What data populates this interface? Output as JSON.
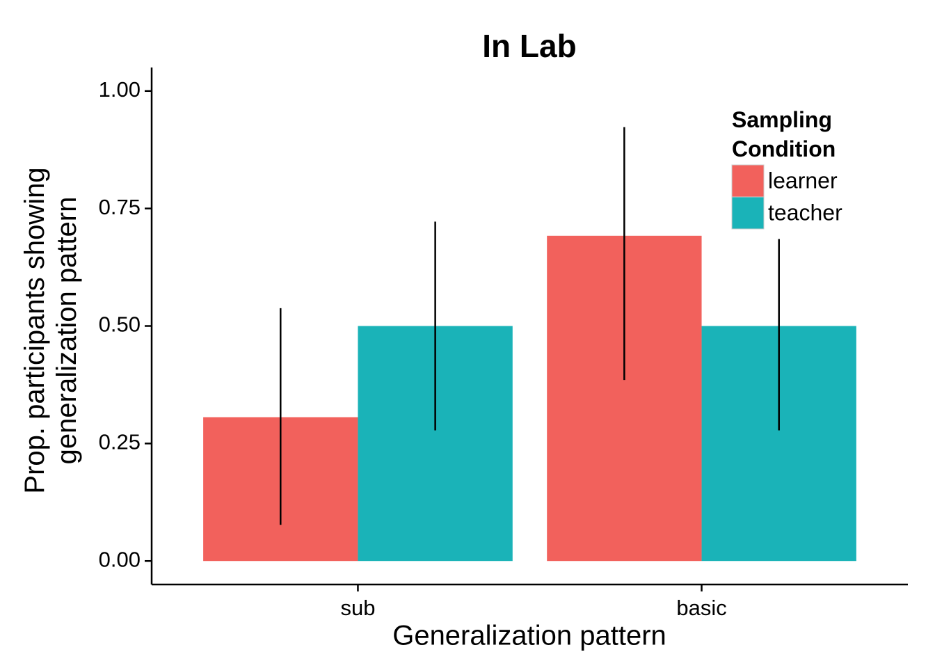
{
  "chart_data": {
    "type": "bar",
    "title": "In Lab",
    "x_label": "Generalization pattern",
    "y_label": "Prop. participants showing\ngeneralization pattern",
    "categories": [
      "sub",
      "basic"
    ],
    "series": [
      {
        "name": "learner",
        "color": "#f2615c",
        "values": [
          0.306,
          0.692
        ],
        "lower": [
          0.077,
          0.385
        ],
        "upper": [
          0.538,
          0.923
        ]
      },
      {
        "name": "teacher",
        "color": "#1ab3b8",
        "values": [
          0.5,
          0.5
        ],
        "lower": [
          0.278,
          0.278
        ],
        "upper": [
          0.722,
          0.685
        ]
      }
    ],
    "ylim": [
      -0.05,
      1.05
    ],
    "yticks": [
      {
        "value": 0,
        "label": "0.00"
      },
      {
        "value": 0.25,
        "label": "0.25"
      },
      {
        "value": 0.5,
        "label": "0.50"
      },
      {
        "value": 0.75,
        "label": "0.75"
      },
      {
        "value": 1,
        "label": "1.00"
      }
    ],
    "legend_title": "Sampling\nCondition",
    "legend_position": "top-right",
    "grid": false
  }
}
